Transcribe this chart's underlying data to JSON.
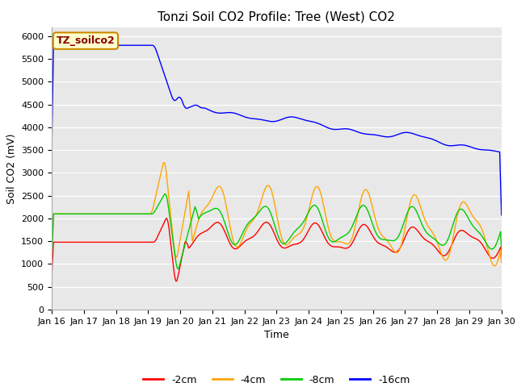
{
  "title": "Tonzi Soil CO2 Profile: Tree (West) CO2",
  "xlabel": "Time",
  "ylabel": "Soil CO2 (mV)",
  "ylim": [
    0,
    6200
  ],
  "yticks": [
    0,
    500,
    1000,
    1500,
    2000,
    2500,
    3000,
    3500,
    4000,
    4500,
    5000,
    5500,
    6000
  ],
  "figure_bg": "#ffffff",
  "plot_bg_color": "#e8e8e8",
  "legend_labels": [
    "-2cm",
    "-4cm",
    "-8cm",
    "-16cm"
  ],
  "legend_colors": [
    "#ff0000",
    "#ffa500",
    "#00cc00",
    "#0000ff"
  ],
  "annotation_text": "TZ_soilco2",
  "annotation_bg": "#ffffcc",
  "annotation_border": "#cc8800",
  "annotation_text_color": "#880000",
  "line_width": 1.0,
  "title_fontsize": 11,
  "tick_fontsize": 8,
  "axis_label_fontsize": 9
}
